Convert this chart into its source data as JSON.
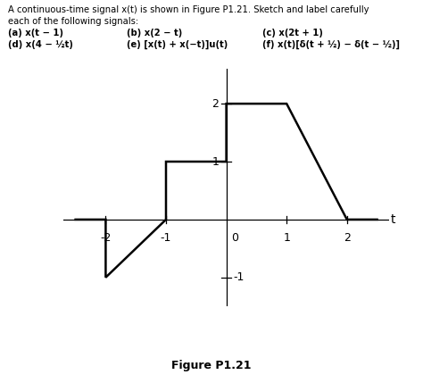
{
  "signal_t": [
    -2.5,
    -2,
    -2,
    -1,
    -1,
    0,
    0,
    1,
    2,
    2.5
  ],
  "signal_x": [
    0,
    0,
    -1,
    0,
    1,
    1,
    2,
    2,
    0,
    0
  ],
  "title_text": "Figure P1.21",
  "xlim": [
    -2.7,
    2.7
  ],
  "ylim": [
    -1.5,
    2.6
  ],
  "xticks": [
    -2,
    -1,
    1,
    2
  ],
  "yticks": [
    -1,
    1,
    2
  ],
  "line_color": "#000000",
  "line_width": 1.8,
  "axis_color": "#000000",
  "bg_color": "#ffffff",
  "header_line1": "A continuous-time signal x(t) is shown in Figure P1.21. Sketch and label carefully",
  "header_line2": "each of the following signals:",
  "row1_a": "(a) x(t − 1)",
  "row1_b": "(b) x(2 − t)",
  "row1_c": "(c) x(2t + 1)",
  "row2_a": "(d) x(4 − ½t)",
  "row2_b": "(e) [x(t) + x(−t)]u(t)",
  "row2_c": "(f) x(t)[δ(t + ½) − δ(t − ½)]",
  "figure_label": "Figure P1.21",
  "t_label": "t",
  "neg1_label": "-1",
  "zero_label": "0"
}
